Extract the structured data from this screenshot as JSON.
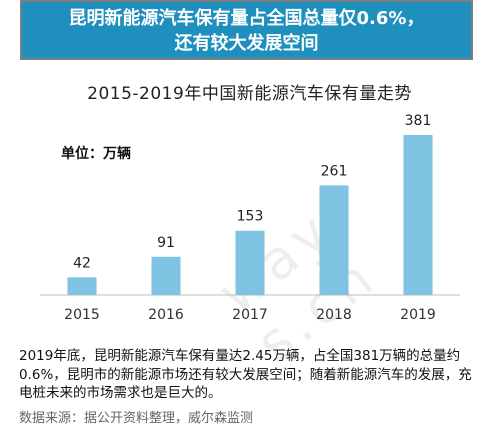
{
  "banner": {
    "line1": "昆明新能源汽车保有量占全国总量仅0.6%，",
    "line2": "还有较大发展空间"
  },
  "unit_label": "单位：万辆",
  "description": "2019年底，昆明新能源汽车保有量达2.45万辆，占全国381万辆的总量约0.6%，昆明市的新能源市场还有较大发展空间；随着新能源汽车的发展，充电桩未来的市场需求也是巨大的。",
  "source": "数据来源：据公开资料整理，威尔森监测",
  "watermark": "way-s.cn",
  "chart_data": {
    "type": "bar",
    "title": "2015-2019年中国新能源汽车保有量走势",
    "categories": [
      "2015",
      "2016",
      "2017",
      "2018",
      "2019"
    ],
    "values": [
      42,
      91,
      153,
      261,
      381
    ],
    "ylim": [
      0,
      400
    ],
    "grid": false,
    "bar_color": "#7ec3e2",
    "axis_color": "#bfbfbf"
  }
}
